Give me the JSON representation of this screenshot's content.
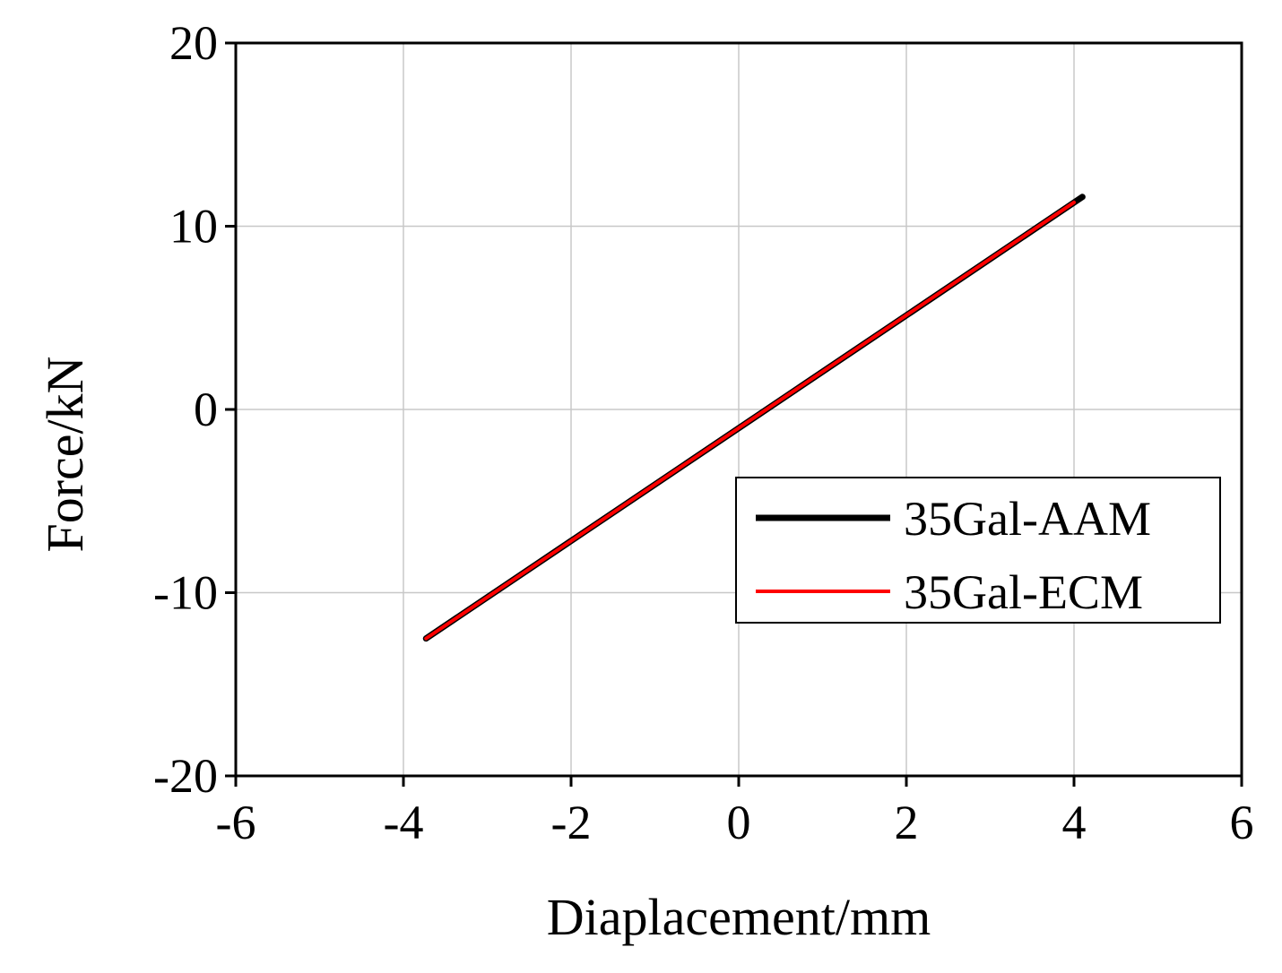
{
  "chart_data": {
    "type": "line",
    "title": "",
    "xlabel": "Diaplacement/mm",
    "ylabel": "Force/kN",
    "xlim": [
      -6,
      6
    ],
    "ylim": [
      -20,
      20
    ],
    "xticks": [
      -6,
      -4,
      -2,
      0,
      2,
      4,
      6
    ],
    "yticks": [
      -20,
      -10,
      0,
      10,
      20
    ],
    "x_tick_labels": [
      "-6",
      "-4",
      "-2",
      "0",
      "2",
      "4",
      "6"
    ],
    "y_tick_labels": [
      "-20",
      "-10",
      "0",
      "10",
      "20"
    ],
    "grid": true,
    "legend_position": "center-right",
    "series": [
      {
        "name": "35Gal-AAM",
        "color": "#000000",
        "x": [
          -3.73,
          4.1
        ],
        "y": [
          -12.5,
          11.6
        ]
      },
      {
        "name": "35Gal-ECM",
        "color": "#ff0000",
        "x": [
          -3.73,
          4.0
        ],
        "y": [
          -12.5,
          11.3
        ]
      }
    ]
  }
}
